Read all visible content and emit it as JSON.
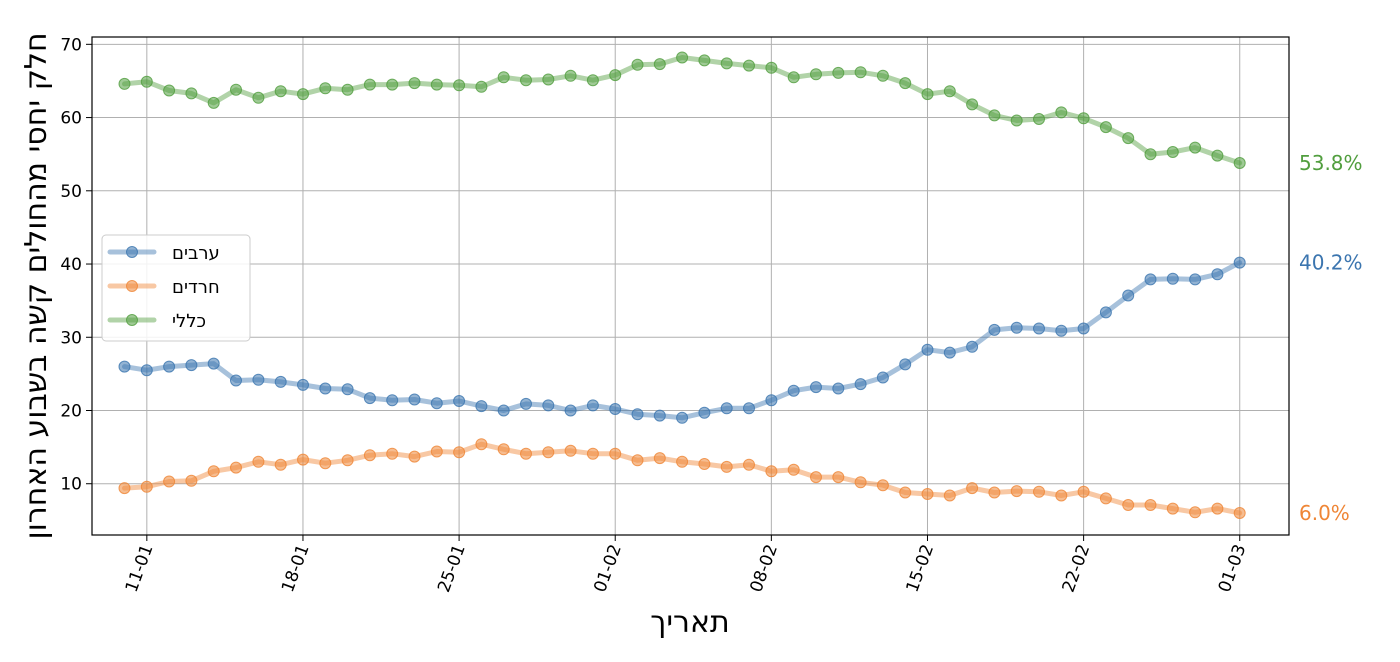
{
  "chart_data": {
    "type": "line",
    "xlabel": "תאריך",
    "ylabel": "חלק יחסי מהחולים קשה בשבוע האחרון",
    "ylim": [
      3,
      71
    ],
    "yticks": [
      10,
      20,
      30,
      40,
      50,
      60,
      70
    ],
    "xticks": [
      {
        "date": "2021-01-11",
        "label": "11-01"
      },
      {
        "date": "2021-01-18",
        "label": "18-01"
      },
      {
        "date": "2021-01-25",
        "label": "25-01"
      },
      {
        "date": "2021-02-01",
        "label": "01-02"
      },
      {
        "date": "2021-02-08",
        "label": "08-02"
      },
      {
        "date": "2021-02-15",
        "label": "15-02"
      },
      {
        "date": "2021-02-22",
        "label": "22-02"
      },
      {
        "date": "2021-03-01",
        "label": "01-03"
      }
    ],
    "xlim": [
      "2021-01-08T13:00",
      "2021-03-03T05:00"
    ],
    "x": [
      "2021-01-10",
      "2021-01-11",
      "2021-01-12",
      "2021-01-13",
      "2021-01-14",
      "2021-01-15",
      "2021-01-16",
      "2021-01-17",
      "2021-01-18",
      "2021-01-19",
      "2021-01-20",
      "2021-01-21",
      "2021-01-22",
      "2021-01-23",
      "2021-01-24",
      "2021-01-25",
      "2021-01-26",
      "2021-01-27",
      "2021-01-28",
      "2021-01-29",
      "2021-01-30",
      "2021-01-31",
      "2021-02-01",
      "2021-02-02",
      "2021-02-03",
      "2021-02-04",
      "2021-02-05",
      "2021-02-06",
      "2021-02-07",
      "2021-02-08",
      "2021-02-09",
      "2021-02-10",
      "2021-02-11",
      "2021-02-12",
      "2021-02-13",
      "2021-02-14",
      "2021-02-15",
      "2021-02-16",
      "2021-02-17",
      "2021-02-18",
      "2021-02-19",
      "2021-02-20",
      "2021-02-21",
      "2021-02-22",
      "2021-02-23",
      "2021-02-24",
      "2021-02-25",
      "2021-02-26",
      "2021-02-27",
      "2021-02-28",
      "2021-03-01"
    ],
    "grid": true,
    "legend_position": "center-left",
    "series": [
      {
        "name": "ערבים",
        "color": "#3b75af",
        "end_label": "40.2%",
        "values": [
          26.0,
          25.5,
          26.0,
          26.2,
          26.4,
          24.1,
          24.2,
          23.9,
          23.5,
          23.0,
          22.9,
          21.7,
          21.4,
          21.5,
          21.0,
          21.3,
          20.6,
          20.0,
          20.9,
          20.7,
          20.0,
          20.7,
          20.2,
          19.5,
          19.3,
          19.0,
          19.7,
          20.3,
          20.3,
          21.4,
          22.7,
          23.2,
          23.0,
          23.6,
          24.5,
          26.3,
          28.3,
          27.9,
          28.7,
          31.0,
          31.3,
          31.2,
          30.9,
          31.2,
          33.4,
          35.7,
          37.9,
          38.0,
          37.9,
          38.6,
          40.2
        ]
      },
      {
        "name": "חרדים",
        "color": "#ef8636",
        "end_label": "6.0%",
        "values": [
          9.4,
          9.6,
          10.3,
          10.4,
          11.7,
          12.2,
          13.0,
          12.6,
          13.3,
          12.8,
          13.2,
          13.9,
          14.1,
          13.7,
          14.4,
          14.3,
          15.4,
          14.7,
          14.1,
          14.3,
          14.5,
          14.1,
          14.1,
          13.2,
          13.5,
          13.0,
          12.7,
          12.3,
          12.6,
          11.7,
          11.9,
          10.9,
          10.9,
          10.2,
          9.8,
          8.8,
          8.6,
          8.4,
          9.4,
          8.8,
          9.0,
          8.9,
          8.4,
          8.9,
          8.0,
          7.1,
          7.1,
          6.6,
          6.1,
          6.6,
          6.0
        ]
      },
      {
        "name": "כללי",
        "color": "#519e3e",
        "end_label": "53.8%",
        "values": [
          64.6,
          64.9,
          63.7,
          63.3,
          62.0,
          63.8,
          62.7,
          63.6,
          63.2,
          64.0,
          63.8,
          64.5,
          64.5,
          64.7,
          64.5,
          64.4,
          64.2,
          65.5,
          65.1,
          65.2,
          65.7,
          65.1,
          65.8,
          67.2,
          67.3,
          68.2,
          67.8,
          67.4,
          67.1,
          66.8,
          65.5,
          65.9,
          66.1,
          66.2,
          65.7,
          64.7,
          63.2,
          63.6,
          61.8,
          60.3,
          59.6,
          59.8,
          60.7,
          59.9,
          58.7,
          57.2,
          55.0,
          55.3,
          55.9,
          54.8,
          53.8
        ]
      }
    ]
  }
}
